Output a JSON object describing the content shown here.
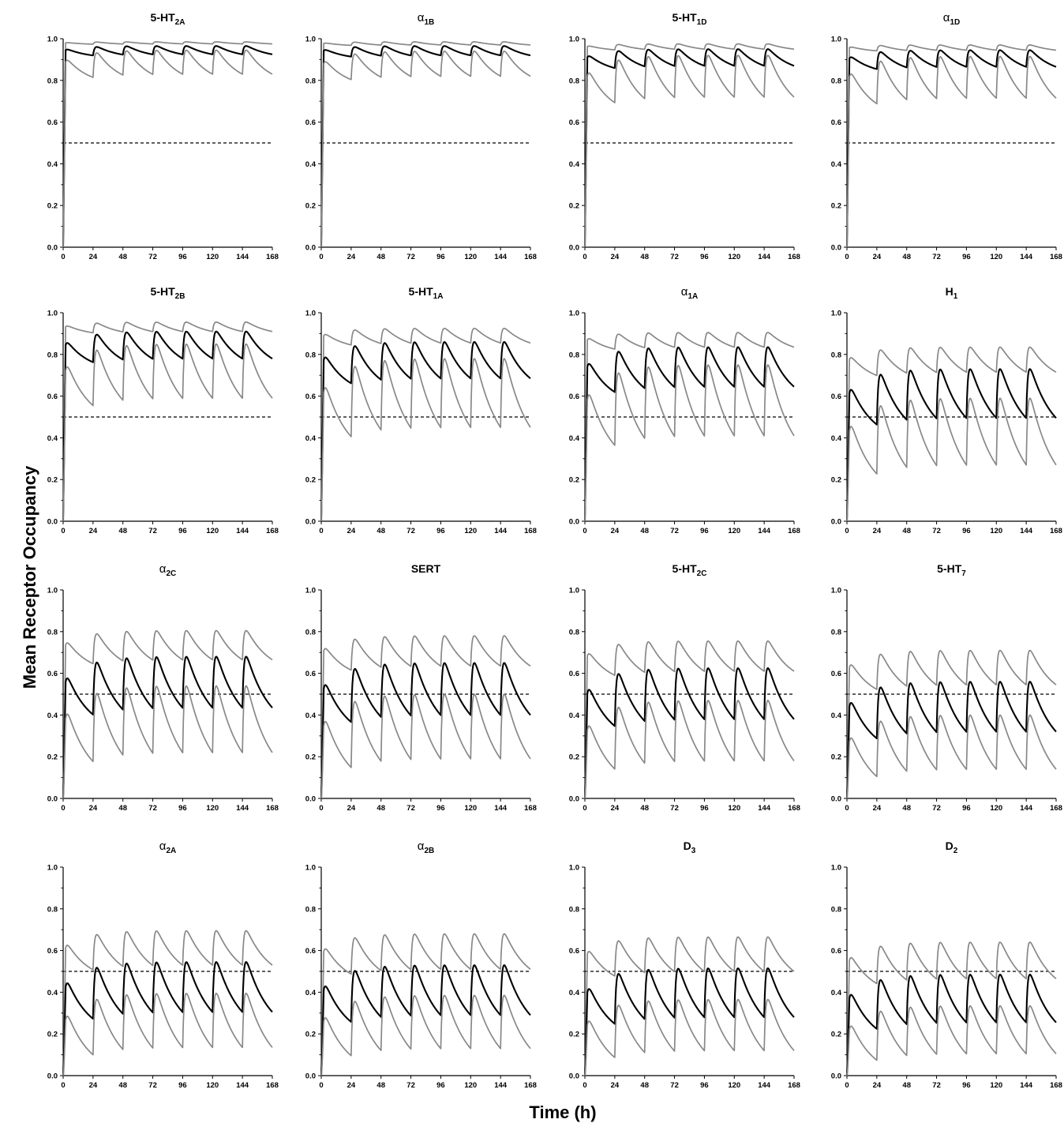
{
  "figure": {
    "ylabel": "Mean Receptor Occupancy",
    "xlabel": "Time (h)"
  },
  "chart_data": [
    {
      "type": "line",
      "title": "5-HT2A",
      "title_main": "5-HT",
      "title_sub": "2A",
      "greek": false,
      "xlabel": "",
      "ylabel": "",
      "xlim": [
        0,
        168
      ],
      "ylim": [
        0,
        1
      ],
      "xticks": [
        0,
        24,
        48,
        72,
        96,
        120,
        144,
        168
      ],
      "yticks": [
        0,
        0.2,
        0.4,
        0.6,
        0.8,
        1.0
      ],
      "reference_line": 0.5,
      "series": [
        {
          "name": "",
          "role": "upper",
          "peak": 0.985,
          "trough": 0.975
        },
        {
          "name": "",
          "role": "mean",
          "peak": 0.965,
          "trough": 0.925
        },
        {
          "name": "",
          "role": "lower",
          "peak": 0.945,
          "trough": 0.83
        }
      ]
    },
    {
      "type": "line",
      "title": "α1B",
      "title_main": "α",
      "title_sub": "1B",
      "greek": true,
      "xlabel": "",
      "ylabel": "",
      "xlim": [
        0,
        168
      ],
      "ylim": [
        0,
        1
      ],
      "xticks": [
        0,
        24,
        48,
        72,
        96,
        120,
        144,
        168
      ],
      "yticks": [
        0,
        0.2,
        0.4,
        0.6,
        0.8,
        1.0
      ],
      "reference_line": 0.5,
      "series": [
        {
          "name": "",
          "role": "upper",
          "peak": 0.985,
          "trough": 0.97
        },
        {
          "name": "",
          "role": "mean",
          "peak": 0.965,
          "trough": 0.92
        },
        {
          "name": "",
          "role": "lower",
          "peak": 0.94,
          "trough": 0.82
        }
      ]
    },
    {
      "type": "line",
      "title": "5-HT1D",
      "title_main": "5-HT",
      "title_sub": "1D",
      "greek": false,
      "xlabel": "",
      "ylabel": "",
      "xlim": [
        0,
        168
      ],
      "ylim": [
        0,
        1
      ],
      "xticks": [
        0,
        24,
        48,
        72,
        96,
        120,
        144,
        168
      ],
      "yticks": [
        0,
        0.2,
        0.4,
        0.6,
        0.8,
        1.0
      ],
      "reference_line": 0.5,
      "series": [
        {
          "name": "",
          "role": "upper",
          "peak": 0.975,
          "trough": 0.95
        },
        {
          "name": "",
          "role": "mean",
          "peak": 0.95,
          "trough": 0.87
        },
        {
          "name": "",
          "role": "lower",
          "peak": 0.92,
          "trough": 0.72
        }
      ]
    },
    {
      "type": "line",
      "title": "α1D",
      "title_main": "α",
      "title_sub": "1D",
      "greek": true,
      "xlabel": "",
      "ylabel": "",
      "xlim": [
        0,
        168
      ],
      "ylim": [
        0,
        1
      ],
      "xticks": [
        0,
        24,
        48,
        72,
        96,
        120,
        144,
        168
      ],
      "yticks": [
        0,
        0.2,
        0.4,
        0.6,
        0.8,
        1.0
      ],
      "reference_line": 0.5,
      "series": [
        {
          "name": "",
          "role": "upper",
          "peak": 0.97,
          "trough": 0.945
        },
        {
          "name": "",
          "role": "mean",
          "peak": 0.945,
          "trough": 0.865
        },
        {
          "name": "",
          "role": "lower",
          "peak": 0.915,
          "trough": 0.715
        }
      ]
    },
    {
      "type": "line",
      "title": "5-HT2B",
      "title_main": "5-HT",
      "title_sub": "2B",
      "greek": false,
      "xlabel": "",
      "ylabel": "",
      "xlim": [
        0,
        168
      ],
      "ylim": [
        0,
        1
      ],
      "xticks": [
        0,
        24,
        48,
        72,
        96,
        120,
        144,
        168
      ],
      "yticks": [
        0,
        0.2,
        0.4,
        0.6,
        0.8,
        1.0
      ],
      "reference_line": 0.5,
      "series": [
        {
          "name": "",
          "role": "upper",
          "peak": 0.955,
          "trough": 0.91
        },
        {
          "name": "",
          "role": "mean",
          "peak": 0.91,
          "trough": 0.78
        },
        {
          "name": "",
          "role": "lower",
          "peak": 0.85,
          "trough": 0.59
        }
      ]
    },
    {
      "type": "line",
      "title": "5-HT1A",
      "title_main": "5-HT",
      "title_sub": "1A",
      "greek": false,
      "xlabel": "",
      "ylabel": "",
      "xlim": [
        0,
        168
      ],
      "ylim": [
        0,
        1
      ],
      "xticks": [
        0,
        24,
        48,
        72,
        96,
        120,
        144,
        168
      ],
      "yticks": [
        0,
        0.2,
        0.4,
        0.6,
        0.8,
        1.0
      ],
      "reference_line": 0.5,
      "series": [
        {
          "name": "",
          "role": "upper",
          "peak": 0.925,
          "trough": 0.855
        },
        {
          "name": "",
          "role": "mean",
          "peak": 0.86,
          "trough": 0.685
        },
        {
          "name": "",
          "role": "lower",
          "peak": 0.78,
          "trough": 0.45
        }
      ]
    },
    {
      "type": "line",
      "title": "α1A",
      "title_main": "α",
      "title_sub": "1A",
      "greek": true,
      "xlabel": "",
      "ylabel": "",
      "xlim": [
        0,
        168
      ],
      "ylim": [
        0,
        1
      ],
      "xticks": [
        0,
        24,
        48,
        72,
        96,
        120,
        144,
        168
      ],
      "yticks": [
        0,
        0.2,
        0.4,
        0.6,
        0.8,
        1.0
      ],
      "reference_line": 0.5,
      "series": [
        {
          "name": "",
          "role": "upper",
          "peak": 0.905,
          "trough": 0.835
        },
        {
          "name": "",
          "role": "mean",
          "peak": 0.835,
          "trough": 0.645
        },
        {
          "name": "",
          "role": "lower",
          "peak": 0.75,
          "trough": 0.41
        }
      ]
    },
    {
      "type": "line",
      "title": "H1",
      "title_main": "H",
      "title_sub": "1",
      "greek": false,
      "xlabel": "",
      "ylabel": "",
      "xlim": [
        0,
        168
      ],
      "ylim": [
        0,
        1
      ],
      "xticks": [
        0,
        24,
        48,
        72,
        96,
        120,
        144,
        168
      ],
      "yticks": [
        0,
        0.2,
        0.4,
        0.6,
        0.8,
        1.0
      ],
      "reference_line": 0.5,
      "series": [
        {
          "name": "",
          "role": "upper",
          "peak": 0.835,
          "trough": 0.715
        },
        {
          "name": "",
          "role": "mean",
          "peak": 0.73,
          "trough": 0.495
        },
        {
          "name": "",
          "role": "lower",
          "peak": 0.59,
          "trough": 0.27
        }
      ]
    },
    {
      "type": "line",
      "title": "α2C",
      "title_main": "α",
      "title_sub": "2C",
      "greek": true,
      "xlabel": "",
      "ylabel": "",
      "xlim": [
        0,
        168
      ],
      "ylim": [
        0,
        1
      ],
      "xticks": [
        0,
        24,
        48,
        72,
        96,
        120,
        144,
        168
      ],
      "yticks": [
        0,
        0.2,
        0.4,
        0.6,
        0.8,
        1.0
      ],
      "reference_line": 0.5,
      "series": [
        {
          "name": "",
          "role": "upper",
          "peak": 0.805,
          "trough": 0.665
        },
        {
          "name": "",
          "role": "mean",
          "peak": 0.68,
          "trough": 0.435
        },
        {
          "name": "",
          "role": "lower",
          "peak": 0.54,
          "trough": 0.22
        }
      ]
    },
    {
      "type": "line",
      "title": "SERT",
      "title_main": "SERT",
      "title_sub": "",
      "greek": false,
      "xlabel": "",
      "ylabel": "",
      "xlim": [
        0,
        168
      ],
      "ylim": [
        0,
        1
      ],
      "xticks": [
        0,
        24,
        48,
        72,
        96,
        120,
        144,
        168
      ],
      "yticks": [
        0,
        0.2,
        0.4,
        0.6,
        0.8,
        1.0
      ],
      "reference_line": 0.5,
      "series": [
        {
          "name": "",
          "role": "upper",
          "peak": 0.78,
          "trough": 0.635
        },
        {
          "name": "",
          "role": "mean",
          "peak": 0.65,
          "trough": 0.4
        },
        {
          "name": "",
          "role": "lower",
          "peak": 0.5,
          "trough": 0.19
        }
      ]
    },
    {
      "type": "line",
      "title": "5-HT2C",
      "title_main": "5-HT",
      "title_sub": "2C",
      "greek": false,
      "xlabel": "",
      "ylabel": "",
      "xlim": [
        0,
        168
      ],
      "ylim": [
        0,
        1
      ],
      "xticks": [
        0,
        24,
        48,
        72,
        96,
        120,
        144,
        168
      ],
      "yticks": [
        0,
        0.2,
        0.4,
        0.6,
        0.8,
        1.0
      ],
      "reference_line": 0.5,
      "series": [
        {
          "name": "",
          "role": "upper",
          "peak": 0.755,
          "trough": 0.61
        },
        {
          "name": "",
          "role": "mean",
          "peak": 0.625,
          "trough": 0.38
        },
        {
          "name": "",
          "role": "lower",
          "peak": 0.47,
          "trough": 0.18
        }
      ]
    },
    {
      "type": "line",
      "title": "5-HT7",
      "title_main": "5-HT",
      "title_sub": "7",
      "greek": false,
      "xlabel": "",
      "ylabel": "",
      "xlim": [
        0,
        168
      ],
      "ylim": [
        0,
        1
      ],
      "xticks": [
        0,
        24,
        48,
        72,
        96,
        120,
        144,
        168
      ],
      "yticks": [
        0,
        0.2,
        0.4,
        0.6,
        0.8,
        1.0
      ],
      "reference_line": 0.5,
      "series": [
        {
          "name": "",
          "role": "upper",
          "peak": 0.71,
          "trough": 0.545
        },
        {
          "name": "",
          "role": "mean",
          "peak": 0.56,
          "trough": 0.32
        },
        {
          "name": "",
          "role": "lower",
          "peak": 0.4,
          "trough": 0.14
        }
      ]
    },
    {
      "type": "line",
      "title": "α2A",
      "title_main": "α",
      "title_sub": "2A",
      "greek": true,
      "xlabel": "",
      "ylabel": "",
      "xlim": [
        0,
        168
      ],
      "ylim": [
        0,
        1
      ],
      "xticks": [
        0,
        24,
        48,
        72,
        96,
        120,
        144,
        168
      ],
      "yticks": [
        0,
        0.2,
        0.4,
        0.6,
        0.8,
        1.0
      ],
      "reference_line": 0.5,
      "series": [
        {
          "name": "",
          "role": "upper",
          "peak": 0.695,
          "trough": 0.53
        },
        {
          "name": "",
          "role": "mean",
          "peak": 0.545,
          "trough": 0.305
        },
        {
          "name": "",
          "role": "lower",
          "peak": 0.395,
          "trough": 0.135
        }
      ]
    },
    {
      "type": "line",
      "title": "α2B",
      "title_main": "α",
      "title_sub": "2B",
      "greek": true,
      "xlabel": "",
      "ylabel": "",
      "xlim": [
        0,
        168
      ],
      "ylim": [
        0,
        1
      ],
      "xticks": [
        0,
        24,
        48,
        72,
        96,
        120,
        144,
        168
      ],
      "yticks": [
        0,
        0.2,
        0.4,
        0.6,
        0.8,
        1.0
      ],
      "reference_line": 0.5,
      "series": [
        {
          "name": "",
          "role": "upper",
          "peak": 0.68,
          "trough": 0.51
        },
        {
          "name": "",
          "role": "mean",
          "peak": 0.53,
          "trough": 0.29
        },
        {
          "name": "",
          "role": "lower",
          "peak": 0.385,
          "trough": 0.13
        }
      ]
    },
    {
      "type": "line",
      "title": "D3",
      "title_main": "D",
      "title_sub": "3",
      "greek": false,
      "xlabel": "",
      "ylabel": "",
      "xlim": [
        0,
        168
      ],
      "ylim": [
        0,
        1
      ],
      "xticks": [
        0,
        24,
        48,
        72,
        96,
        120,
        144,
        168
      ],
      "yticks": [
        0,
        0.2,
        0.4,
        0.6,
        0.8,
        1.0
      ],
      "reference_line": 0.5,
      "series": [
        {
          "name": "",
          "role": "upper",
          "peak": 0.665,
          "trough": 0.5
        },
        {
          "name": "",
          "role": "mean",
          "peak": 0.515,
          "trough": 0.28
        },
        {
          "name": "",
          "role": "lower",
          "peak": 0.365,
          "trough": 0.12
        }
      ]
    },
    {
      "type": "line",
      "title": "D2",
      "title_main": "D",
      "title_sub": "2",
      "greek": false,
      "xlabel": "",
      "ylabel": "",
      "xlim": [
        0,
        168
      ],
      "ylim": [
        0,
        1
      ],
      "xticks": [
        0,
        24,
        48,
        72,
        96,
        120,
        144,
        168
      ],
      "yticks": [
        0,
        0.2,
        0.4,
        0.6,
        0.8,
        1.0
      ],
      "reference_line": 0.5,
      "series": [
        {
          "name": "",
          "role": "upper",
          "peak": 0.64,
          "trough": 0.465
        },
        {
          "name": "",
          "role": "mean",
          "peak": 0.485,
          "trough": 0.255
        },
        {
          "name": "",
          "role": "lower",
          "peak": 0.335,
          "trough": 0.105
        }
      ]
    }
  ]
}
